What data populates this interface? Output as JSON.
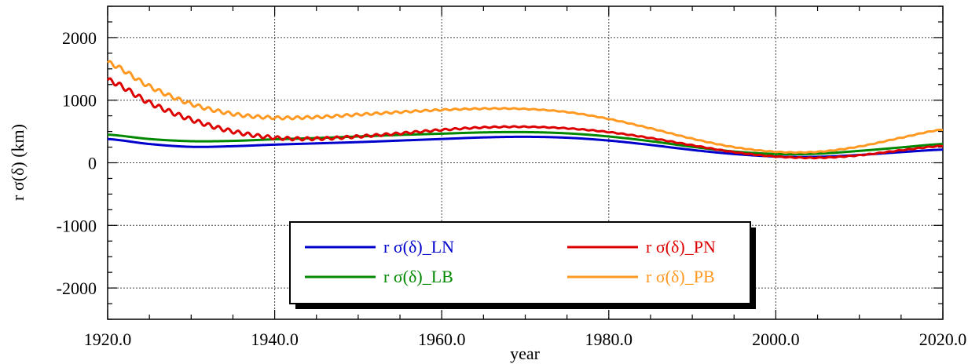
{
  "chart_data": {
    "type": "line",
    "title": "",
    "xlabel": "year",
    "ylabel": "r σ(δ) (km)",
    "xlim": [
      1920,
      2020
    ],
    "ylim": [
      -2500,
      2500
    ],
    "x_ticks": [
      1920,
      1940,
      1960,
      1980,
      2000,
      2020
    ],
    "x_tick_labels": [
      "1920.0",
      "1940.0",
      "1960.0",
      "1980.0",
      "2000.0",
      "2020.0"
    ],
    "y_ticks": [
      2000,
      1000,
      0,
      -1000,
      -2000
    ],
    "y_tick_labels": [
      "2000",
      "1000",
      "0",
      "-1000",
      "-2000"
    ],
    "grid": true,
    "legend_position": "bottom-center",
    "series": [
      {
        "name": "r σ(δ)_LN",
        "color": "#0000cc",
        "oscillation": 0,
        "points": [
          [
            1920,
            380
          ],
          [
            1925,
            300
          ],
          [
            1930,
            255
          ],
          [
            1935,
            265
          ],
          [
            1940,
            290
          ],
          [
            1945,
            310
          ],
          [
            1950,
            330
          ],
          [
            1955,
            355
          ],
          [
            1960,
            380
          ],
          [
            1965,
            405
          ],
          [
            1970,
            415
          ],
          [
            1975,
            400
          ],
          [
            1980,
            355
          ],
          [
            1985,
            285
          ],
          [
            1990,
            205
          ],
          [
            1995,
            140
          ],
          [
            2000,
            100
          ],
          [
            2005,
            95
          ],
          [
            2010,
            125
          ],
          [
            2015,
            170
          ],
          [
            2020,
            210
          ]
        ]
      },
      {
        "name": "r σ(δ)_PN",
        "color": "#dd0000",
        "oscillation": 40,
        "points": [
          [
            1920,
            1320
          ],
          [
            1925,
            960
          ],
          [
            1930,
            690
          ],
          [
            1935,
            500
          ],
          [
            1940,
            400
          ],
          [
            1945,
            385
          ],
          [
            1950,
            420
          ],
          [
            1955,
            470
          ],
          [
            1960,
            525
          ],
          [
            1965,
            565
          ],
          [
            1970,
            575
          ],
          [
            1975,
            550
          ],
          [
            1980,
            490
          ],
          [
            1985,
            395
          ],
          [
            1990,
            280
          ],
          [
            1995,
            170
          ],
          [
            2000,
            100
          ],
          [
            2005,
            80
          ],
          [
            2010,
            120
          ],
          [
            2015,
            200
          ],
          [
            2020,
            270
          ]
        ]
      },
      {
        "name": "r σ(δ)_LB",
        "color": "#008800",
        "oscillation": 0,
        "points": [
          [
            1920,
            450
          ],
          [
            1925,
            380
          ],
          [
            1930,
            345
          ],
          [
            1935,
            350
          ],
          [
            1940,
            375
          ],
          [
            1945,
            395
          ],
          [
            1950,
            420
          ],
          [
            1955,
            445
          ],
          [
            1960,
            465
          ],
          [
            1965,
            485
          ],
          [
            1970,
            490
          ],
          [
            1975,
            470
          ],
          [
            1980,
            420
          ],
          [
            1985,
            345
          ],
          [
            1990,
            255
          ],
          [
            1995,
            180
          ],
          [
            2000,
            140
          ],
          [
            2005,
            145
          ],
          [
            2010,
            190
          ],
          [
            2015,
            245
          ],
          [
            2020,
            300
          ]
        ]
      },
      {
        "name": "r σ(δ)_PB",
        "color": "#ff9922",
        "oscillation": 35,
        "points": [
          [
            1920,
            1600
          ],
          [
            1925,
            1220
          ],
          [
            1930,
            940
          ],
          [
            1935,
            780
          ],
          [
            1940,
            720
          ],
          [
            1945,
            730
          ],
          [
            1950,
            770
          ],
          [
            1955,
            810
          ],
          [
            1960,
            845
          ],
          [
            1965,
            865
          ],
          [
            1970,
            860
          ],
          [
            1975,
            810
          ],
          [
            1980,
            700
          ],
          [
            1985,
            550
          ],
          [
            1990,
            385
          ],
          [
            1995,
            250
          ],
          [
            2000,
            175
          ],
          [
            2005,
            175
          ],
          [
            2010,
            260
          ],
          [
            2015,
            400
          ],
          [
            2020,
            530
          ]
        ]
      }
    ]
  }
}
